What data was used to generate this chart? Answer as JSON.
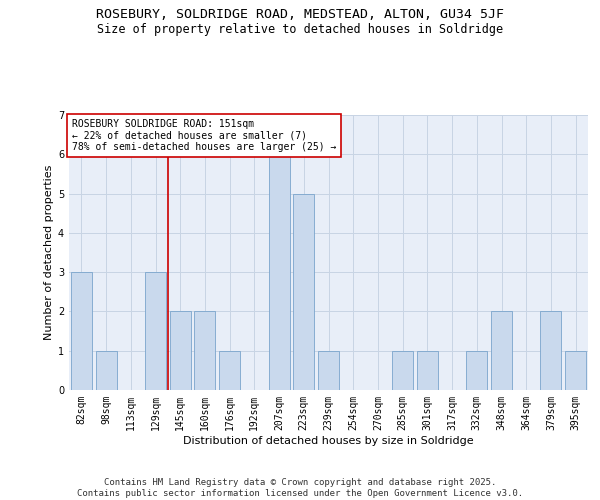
{
  "title_line1": "ROSEBURY, SOLDRIDGE ROAD, MEDSTEAD, ALTON, GU34 5JF",
  "title_line2": "Size of property relative to detached houses in Soldridge",
  "xlabel": "Distribution of detached houses by size in Soldridge",
  "ylabel": "Number of detached properties",
  "categories": [
    "82sqm",
    "98sqm",
    "113sqm",
    "129sqm",
    "145sqm",
    "160sqm",
    "176sqm",
    "192sqm",
    "207sqm",
    "223sqm",
    "239sqm",
    "254sqm",
    "270sqm",
    "285sqm",
    "301sqm",
    "317sqm",
    "332sqm",
    "348sqm",
    "364sqm",
    "379sqm",
    "395sqm"
  ],
  "values": [
    3,
    1,
    0,
    3,
    2,
    2,
    1,
    0,
    6,
    5,
    1,
    0,
    0,
    1,
    1,
    0,
    1,
    2,
    0,
    2,
    1
  ],
  "bar_color": "#c9d9ed",
  "bar_edge_color": "#7aa4cc",
  "grid_color": "#c8d4e4",
  "background_color": "#e8eef8",
  "annotation_text": "ROSEBURY SOLDRIDGE ROAD: 151sqm\n← 22% of detached houses are smaller (7)\n78% of semi-detached houses are larger (25) →",
  "vline_index": 3.5,
  "vline_color": "#cc0000",
  "annotation_box_edge_color": "#cc0000",
  "ylim": [
    0,
    7
  ],
  "yticks": [
    0,
    1,
    2,
    3,
    4,
    5,
    6,
    7
  ],
  "footnote": "Contains HM Land Registry data © Crown copyright and database right 2025.\nContains public sector information licensed under the Open Government Licence v3.0.",
  "title_fontsize": 9.5,
  "subtitle_fontsize": 8.5,
  "annotation_fontsize": 7,
  "footnote_fontsize": 6.5,
  "axis_label_fontsize": 8,
  "tick_fontsize": 7
}
